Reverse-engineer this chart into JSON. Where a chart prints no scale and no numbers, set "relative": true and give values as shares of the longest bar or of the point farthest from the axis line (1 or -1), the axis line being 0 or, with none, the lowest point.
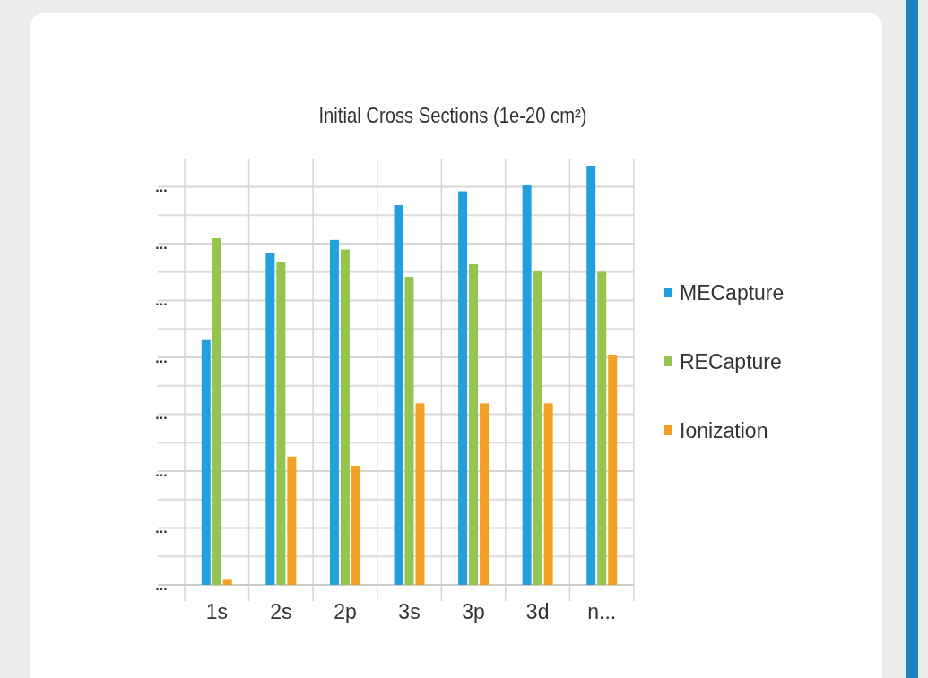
{
  "chart_data": {
    "type": "bar",
    "title": "Initial Cross Sections (1e-20 cm²)",
    "relative": true,
    "categories": [
      "1s",
      "2s",
      "2p",
      "3s",
      "3p",
      "3d",
      "n..."
    ],
    "series": [
      {
        "name": "MECapture",
        "color": "#239fdc",
        "values": [
          0.584,
          0.791,
          0.823,
          0.906,
          0.939,
          0.954,
          1
        ]
      },
      {
        "name": "RECapture",
        "color": "#95c551",
        "values": [
          0.827,
          0.771,
          0.8,
          0.735,
          0.765,
          0.748,
          0.747
        ]
      },
      {
        "name": "Ionization",
        "color": "#f3a124",
        "values": [
          0.012,
          0.306,
          0.284,
          0.433,
          0.433,
          0.433,
          0.549
        ]
      }
    ],
    "annotations": [
      "...",
      "...",
      "...",
      "...",
      "...",
      "...",
      "...",
      "..."
    ],
    "grid": true,
    "legend": "right"
  }
}
